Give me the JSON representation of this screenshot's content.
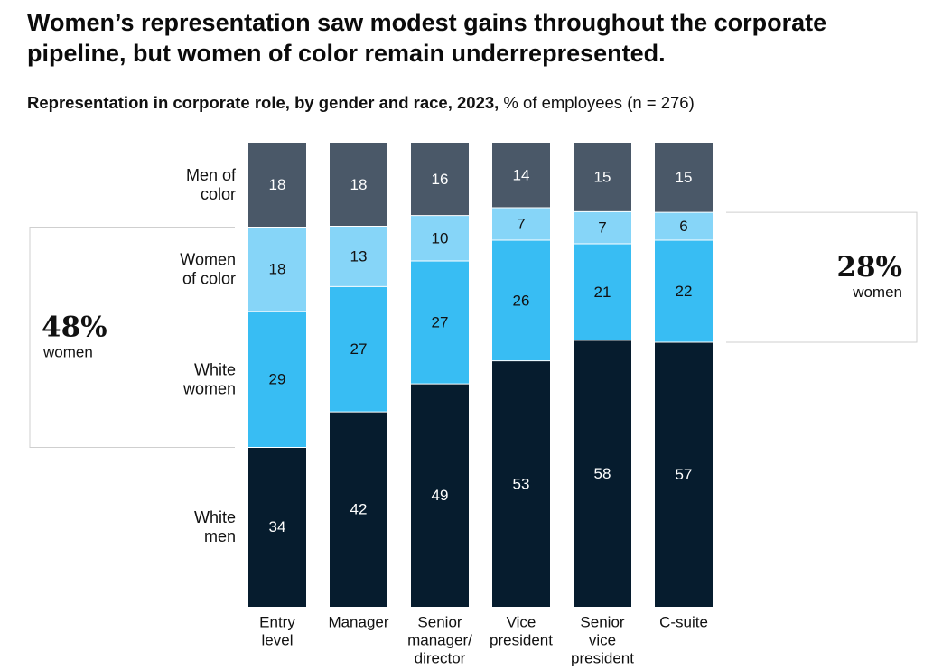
{
  "header": {
    "title_line1": "Women’s representation saw modest gains throughout the corporate",
    "title_line2": "pipeline, but women of color remain underrepresented.",
    "subtitle_bold": "Representation in corporate role, by gender and race, 2023,",
    "subtitle_rest": " % of employees (n = 276)"
  },
  "chart_data": {
    "type": "bar",
    "stacked": true,
    "title": "Representation in corporate role, by gender and race, 2023, % of employees (n = 276)",
    "categories": [
      [
        "Entry",
        "level"
      ],
      [
        "Manager"
      ],
      [
        "Senior",
        "manager/",
        "director"
      ],
      [
        "Vice",
        "president"
      ],
      [
        "Senior",
        "vice",
        "president"
      ],
      [
        "C-suite"
      ]
    ],
    "series": [
      {
        "name": [
          "White",
          "men"
        ],
        "color": "#061c2e",
        "text_color": "#ffffff",
        "values": [
          34,
          42,
          49,
          53,
          58,
          57
        ]
      },
      {
        "name": [
          "White",
          "women"
        ],
        "color": "#38bdf3",
        "text_color": "#111111",
        "values": [
          29,
          27,
          27,
          26,
          21,
          22
        ]
      },
      {
        "name": [
          "Women",
          "of color"
        ],
        "color": "#86d5f8",
        "text_color": "#111111",
        "values": [
          18,
          13,
          10,
          7,
          7,
          6
        ]
      },
      {
        "name": [
          "Men of",
          "color"
        ],
        "color": "#4a5868",
        "text_color": "#ffffff",
        "values": [
          18,
          18,
          16,
          14,
          15,
          15
        ]
      }
    ],
    "ylim": [
      0,
      100
    ],
    "legend": "left row labels",
    "callouts": [
      {
        "value": "48%",
        "label": "women",
        "category_index": 0,
        "side": "left"
      },
      {
        "value": "28%",
        "label": "women",
        "category_index": 5,
        "side": "right"
      }
    ]
  }
}
